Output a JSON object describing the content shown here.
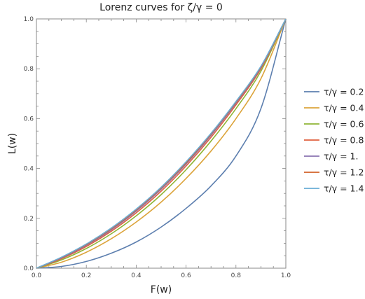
{
  "chart_data": {
    "type": "line",
    "title": "Lorenz curves for ζ/γ = 0",
    "xlabel": "F(w)",
    "ylabel": "L(w)",
    "xlim": [
      0,
      1
    ],
    "ylim": [
      0,
      1
    ],
    "x_ticks": [
      "0.0",
      "0.2",
      "0.4",
      "0.6",
      "0.8",
      "1.0"
    ],
    "y_ticks": [
      "0.0",
      "0.2",
      "0.4",
      "0.6",
      "0.8",
      "1.0"
    ],
    "grid": false,
    "legend_position": "right",
    "x": [
      0,
      0.1,
      0.2,
      0.3,
      0.4,
      0.5,
      0.6,
      0.7,
      0.8,
      0.9,
      1.0
    ],
    "series": [
      {
        "name": "τ/γ = 0.2",
        "color": "#5d7faf",
        "values": [
          0,
          0.007,
          0.027,
          0.06,
          0.105,
          0.165,
          0.24,
          0.33,
          0.45,
          0.64,
          1.0
        ]
      },
      {
        "name": "τ/γ = 0.4",
        "color": "#dca43b",
        "values": [
          0,
          0.024,
          0.064,
          0.118,
          0.185,
          0.265,
          0.36,
          0.47,
          0.6,
          0.76,
          1.0
        ]
      },
      {
        "name": "τ/γ = 0.6",
        "color": "#8fb536",
        "values": [
          0,
          0.033,
          0.079,
          0.138,
          0.21,
          0.295,
          0.395,
          0.51,
          0.64,
          0.79,
          1.0
        ]
      },
      {
        "name": "τ/γ = 0.8",
        "color": "#e0613e",
        "values": [
          0,
          0.038,
          0.087,
          0.148,
          0.222,
          0.309,
          0.41,
          0.525,
          0.655,
          0.8,
          1.0
        ]
      },
      {
        "name": "τ/γ = 1.",
        "color": "#8a72b0",
        "values": [
          0,
          0.041,
          0.092,
          0.154,
          0.229,
          0.317,
          0.418,
          0.533,
          0.662,
          0.805,
          1.0
        ]
      },
      {
        "name": "τ/γ = 1.2",
        "color": "#d2632a",
        "values": [
          0,
          0.043,
          0.095,
          0.158,
          0.234,
          0.322,
          0.423,
          0.538,
          0.666,
          0.808,
          1.0
        ]
      },
      {
        "name": "τ/γ = 1.4",
        "color": "#6aaed6",
        "values": [
          0,
          0.044,
          0.097,
          0.161,
          0.237,
          0.325,
          0.427,
          0.541,
          0.669,
          0.81,
          1.0
        ]
      }
    ]
  }
}
